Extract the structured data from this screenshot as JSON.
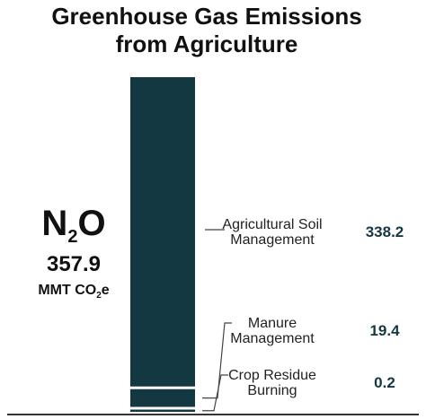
{
  "chart_data": {
    "type": "bar",
    "title": "Greenhouse Gas Emissions from Agriculture",
    "title_lines": [
      "Greenhouse Gas Emissions",
      "from Agriculture"
    ],
    "gas": {
      "symbol": "N",
      "subscript": "2",
      "suffix": "O"
    },
    "total": {
      "value": "357.9",
      "unit_prefix": "MMT CO",
      "unit_subscript": "2",
      "unit_suffix": "e"
    },
    "categories": [
      {
        "name": "Agricultural Soil Management",
        "lines": [
          "Agricultural Soil",
          "Management"
        ],
        "value": 338.2,
        "label": "338.2"
      },
      {
        "name": "Manure Management",
        "lines": [
          "Manure",
          "Management"
        ],
        "value": 19.4,
        "label": "19.4"
      },
      {
        "name": "Crop Residue Burning",
        "lines": [
          "Crop Residue",
          "Burning"
        ],
        "value": 0.2,
        "label": "0.2"
      }
    ],
    "stack_order": "top-to-bottom",
    "bar_color": "#143842",
    "value_color": "#143842"
  }
}
